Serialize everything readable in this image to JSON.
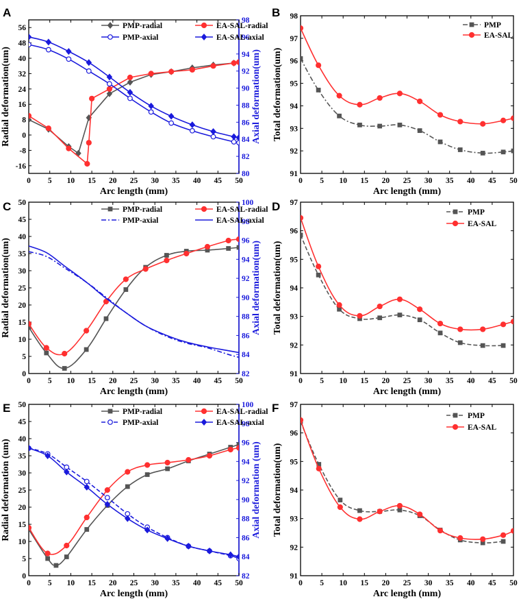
{
  "colors": {
    "pmp": "#555555",
    "ea_sal": "#ff3030",
    "axial_axis": "#1a1adc",
    "axis": "#000000"
  },
  "chart_data": [
    {
      "panel": "A",
      "type": "line",
      "xlabel": "Arc length (mm)",
      "ylabel": "Radial deformation(um)",
      "y2label": "Axial deformation(um)",
      "xlim": [
        0,
        50
      ],
      "ylim": [
        -20,
        60
      ],
      "y2lim": [
        80,
        98
      ],
      "xticks": [
        0,
        5,
        10,
        15,
        20,
        25,
        30,
        35,
        40,
        45,
        50
      ],
      "yticks": [
        -16,
        -8,
        0,
        8,
        16,
        24,
        32,
        40,
        48,
        56
      ],
      "y2ticks": [
        80,
        82,
        84,
        86,
        88,
        90,
        92,
        94,
        96,
        98
      ],
      "legend_position": "top-center",
      "series": [
        {
          "name": "PMP-radial",
          "axis": "left",
          "color": "#555555",
          "marker": "diamond",
          "dash": "solid",
          "x": [
            0,
            4.7,
            9.5,
            11.8,
            14.3,
            19.2,
            24.1,
            29.1,
            33.9,
            38.9,
            43.9,
            48.8,
            50
          ],
          "y": [
            8,
            3,
            -6,
            -9.5,
            9,
            21.5,
            27.5,
            31.5,
            33,
            35,
            36.5,
            37.5,
            37.8
          ]
        },
        {
          "name": "EA-SAL-radial",
          "axis": "left",
          "color": "#ff3030",
          "marker": "circle",
          "dash": "solid",
          "x": [
            0,
            4.7,
            9.5,
            13.9,
            14.3,
            15,
            19.2,
            24.1,
            29.1,
            33.9,
            38.9,
            43.9,
            48.8,
            50
          ],
          "y": [
            10,
            3.5,
            -7,
            -15,
            -4,
            19,
            24,
            30,
            32,
            33,
            34,
            36,
            37.5,
            38
          ]
        },
        {
          "name": "PMP-axial",
          "axis": "right",
          "color": "#1a1adc",
          "marker": "open-circle",
          "dash": "solid",
          "x": [
            0,
            4.7,
            9.5,
            14.3,
            19.2,
            24.1,
            29.1,
            33.9,
            38.9,
            43.9,
            48.8,
            50
          ],
          "y": [
            95.1,
            94.5,
            93.4,
            92.0,
            90.5,
            88.8,
            87.2,
            85.9,
            85.0,
            84.3,
            83.7,
            83.6
          ]
        },
        {
          "name": "EA-SAL-axial",
          "axis": "right",
          "color": "#1a1adc",
          "marker": "filled-diamond",
          "dash": "solid",
          "x": [
            0,
            4.7,
            9.5,
            14.3,
            19.2,
            24.1,
            29.1,
            33.9,
            38.9,
            43.9,
            48.8,
            50
          ],
          "y": [
            96.0,
            95.4,
            94.3,
            93.0,
            91.3,
            89.5,
            87.9,
            86.7,
            85.7,
            84.9,
            84.3,
            84.2
          ]
        }
      ]
    },
    {
      "panel": "B",
      "type": "line",
      "xlabel": "Arc length (mm)",
      "ylabel": "Total deformation(um)",
      "xlim": [
        0,
        50
      ],
      "ylim": [
        91,
        98
      ],
      "xticks": [
        0,
        5,
        10,
        15,
        20,
        25,
        30,
        35,
        40,
        45,
        50
      ],
      "yticks": [
        91,
        92,
        93,
        94,
        95,
        96,
        97,
        98
      ],
      "legend_position": "top-right",
      "series": [
        {
          "name": "PMP",
          "color": "#555555",
          "marker": "square",
          "dash": "dashdot",
          "x": [
            0,
            4.2,
            9.1,
            13.9,
            18.6,
            23.3,
            28,
            32.8,
            37.5,
            42.8,
            47.6,
            50
          ],
          "y": [
            96.1,
            94.7,
            93.55,
            93.15,
            93.1,
            93.15,
            92.9,
            92.4,
            92.05,
            91.9,
            91.95,
            92.0
          ]
        },
        {
          "name": "EA-SAL",
          "color": "#ff3030",
          "marker": "circle",
          "dash": "solid",
          "x": [
            0,
            4.2,
            9.1,
            13.9,
            18.6,
            23.3,
            28,
            32.8,
            37.5,
            42.8,
            47.6,
            50
          ],
          "y": [
            97.45,
            95.8,
            94.45,
            94.05,
            94.35,
            94.55,
            94.2,
            93.6,
            93.3,
            93.2,
            93.35,
            93.45
          ]
        }
      ]
    },
    {
      "panel": "C",
      "type": "line",
      "xlabel": "Arc length (mm)",
      "ylabel": "Radial deformation(um)",
      "y2label": "Axial deformation(um)",
      "xlim": [
        0,
        50
      ],
      "ylim": [
        0,
        50
      ],
      "y2lim": [
        82,
        100
      ],
      "xticks": [
        0,
        5,
        10,
        15,
        20,
        25,
        30,
        35,
        40,
        45,
        50
      ],
      "yticks": [
        0,
        5,
        10,
        15,
        20,
        25,
        30,
        35,
        40,
        45,
        50
      ],
      "y2ticks": [
        82,
        84,
        86,
        88,
        90,
        92,
        94,
        96,
        98,
        100
      ],
      "legend_position": "top-center",
      "series": [
        {
          "name": "PMP-radial",
          "axis": "left",
          "color": "#555555",
          "marker": "square",
          "dash": "solid",
          "x": [
            0,
            4.2,
            8.5,
            13.7,
            18.4,
            23.1,
            27.8,
            32.8,
            37.5,
            42.5,
            47.5,
            50
          ],
          "y": [
            13.5,
            6,
            1.5,
            7,
            16,
            24.5,
            31,
            34.5,
            35.7,
            36,
            36.5,
            36.8
          ]
        },
        {
          "name": "EA-SAL-radial",
          "axis": "left",
          "color": "#ff3030",
          "marker": "circle",
          "dash": "solid",
          "x": [
            0,
            4.2,
            8.5,
            13.7,
            18.4,
            23.1,
            27.8,
            32.8,
            37.5,
            42.5,
            47.5,
            50
          ],
          "y": [
            14.5,
            7.5,
            5.8,
            12.5,
            21,
            27.5,
            30.5,
            33,
            35,
            37,
            38.8,
            39.2
          ]
        },
        {
          "name": "PMP-axial",
          "axis": "right",
          "color": "#1a1adc",
          "marker": "none",
          "dash": "dashdot",
          "x": [
            0,
            4.2,
            8.5,
            13.7,
            18.4,
            23.1,
            27.8,
            32.8,
            37.5,
            42.5,
            47.5,
            50
          ],
          "y": [
            94.8,
            94.3,
            93.1,
            91.6,
            90.0,
            88.4,
            87.0,
            85.9,
            85.2,
            84.7,
            84.0,
            83.7
          ]
        },
        {
          "name": "EA-SAL-axial",
          "axis": "right",
          "color": "#1a1adc",
          "marker": "none",
          "dash": "solid",
          "x": [
            0,
            4.2,
            8.5,
            13.7,
            18.4,
            23.1,
            27.8,
            32.8,
            37.5,
            42.5,
            47.5,
            50
          ],
          "y": [
            95.4,
            94.7,
            93.3,
            91.6,
            89.9,
            88.4,
            87.0,
            86.0,
            85.3,
            84.8,
            84.4,
            84.2
          ]
        }
      ]
    },
    {
      "panel": "D",
      "type": "line",
      "xlabel": "Arc length (mm)",
      "ylabel": "Total deformation(um)",
      "xlim": [
        0,
        50
      ],
      "ylim": [
        91,
        97
      ],
      "xticks": [
        0,
        5,
        10,
        15,
        20,
        25,
        30,
        35,
        40,
        45,
        50
      ],
      "yticks": [
        91,
        92,
        93,
        94,
        95,
        96,
        97
      ],
      "legend_position": "top-right",
      "series": [
        {
          "name": "PMP",
          "color": "#555555",
          "marker": "square",
          "dash": "dashed",
          "x": [
            0,
            4.2,
            9.1,
            13.9,
            18.6,
            23.3,
            28,
            32.8,
            37.5,
            42.8,
            47.6
          ],
          "y": [
            95.85,
            94.45,
            93.25,
            92.92,
            92.95,
            93.05,
            92.88,
            92.42,
            92.08,
            91.98,
            91.98
          ]
        },
        {
          "name": "EA-SAL",
          "color": "#ff3030",
          "marker": "circle",
          "dash": "solid",
          "x": [
            0,
            4.2,
            9.1,
            13.9,
            18.6,
            23.3,
            28,
            32.8,
            37.5,
            42.8,
            47.6,
            50
          ],
          "y": [
            96.45,
            94.75,
            93.4,
            93.02,
            93.35,
            93.6,
            93.25,
            92.75,
            92.55,
            92.55,
            92.72,
            92.82
          ]
        }
      ]
    },
    {
      "panel": "E",
      "type": "line",
      "xlabel": "Arc length (mm)",
      "ylabel": "Radial deformation (um)",
      "y2label": "Axial deformation (um)",
      "xlim": [
        0,
        50
      ],
      "ylim": [
        0,
        50
      ],
      "y2lim": [
        82,
        100
      ],
      "xticks": [
        0,
        5,
        10,
        15,
        20,
        25,
        30,
        35,
        40,
        45,
        50
      ],
      "yticks": [
        0,
        5,
        10,
        15,
        20,
        25,
        30,
        35,
        40,
        45,
        50
      ],
      "y2ticks": [
        82,
        84,
        86,
        88,
        90,
        92,
        94,
        96,
        98,
        100
      ],
      "legend_position": "top-center",
      "series": [
        {
          "name": "PMP-radial",
          "axis": "left",
          "color": "#555555",
          "marker": "square",
          "dash": "solid",
          "x": [
            0,
            4.5,
            6.5,
            9,
            13.8,
            18.7,
            23.5,
            28.2,
            33,
            38,
            43,
            48,
            50
          ],
          "y": [
            13.5,
            5,
            3,
            5.5,
            13.5,
            20.5,
            26,
            29.5,
            31.2,
            33.5,
            35.5,
            37.5,
            38.3
          ]
        },
        {
          "name": "EA-SAL-radial",
          "axis": "left",
          "color": "#ff3030",
          "marker": "circle",
          "dash": "solid",
          "x": [
            0,
            4.5,
            9,
            13.8,
            18.7,
            23.5,
            28.2,
            33,
            38,
            43,
            48,
            50
          ],
          "y": [
            14,
            6.5,
            8.8,
            17,
            25,
            30.3,
            32.3,
            33,
            33.8,
            35,
            36.8,
            37.3
          ]
        },
        {
          "name": "PMP-axial",
          "axis": "right",
          "color": "#1a1adc",
          "marker": "open-circle",
          "dash": "dashed",
          "x": [
            0,
            4.5,
            9,
            13.8,
            18.7,
            23.5,
            28.2,
            33,
            38,
            43,
            48,
            50
          ],
          "y": [
            95.4,
            94.8,
            93.4,
            91.9,
            90.2,
            88.5,
            87.1,
            86.0,
            85.1,
            84.6,
            84.1,
            83.8
          ]
        },
        {
          "name": "EA-SAL-axial",
          "axis": "right",
          "color": "#1a1adc",
          "marker": "filled-diamond",
          "dash": "solid",
          "x": [
            0,
            4.5,
            9,
            13.8,
            18.7,
            23.5,
            28.2,
            33,
            38,
            43,
            48,
            50
          ],
          "y": [
            95.4,
            94.6,
            92.9,
            91.3,
            89.5,
            88.0,
            86.8,
            85.9,
            85.1,
            84.6,
            84.2,
            84.0
          ]
        }
      ]
    },
    {
      "panel": "F",
      "type": "line",
      "xlabel": "Arc length (mm)",
      "ylabel": "Total deformation(um)",
      "xlim": [
        0,
        50
      ],
      "ylim": [
        91,
        97
      ],
      "xticks": [
        0,
        5,
        10,
        15,
        20,
        25,
        30,
        35,
        40,
        45,
        50
      ],
      "yticks": [
        91,
        92,
        93,
        94,
        95,
        96,
        97
      ],
      "legend_position": "top-right",
      "series": [
        {
          "name": "PMP",
          "color": "#555555",
          "marker": "square",
          "dash": "dashed",
          "x": [
            0,
            4.3,
            9.3,
            13.9,
            18.6,
            23.3,
            28,
            32.8,
            37.5,
            42.8,
            47.6
          ],
          "y": [
            96.4,
            94.9,
            93.65,
            93.28,
            93.25,
            93.3,
            93.1,
            92.6,
            92.25,
            92.15,
            92.2
          ]
        },
        {
          "name": "EA-SAL",
          "color": "#ff3030",
          "marker": "circle",
          "dash": "solid",
          "x": [
            0,
            4.3,
            9.3,
            13.9,
            18.6,
            23.3,
            28,
            32.8,
            37.5,
            42.8,
            47.6,
            50
          ],
          "y": [
            96.45,
            94.75,
            93.4,
            92.98,
            93.25,
            93.45,
            93.15,
            92.58,
            92.32,
            92.28,
            92.42,
            92.57
          ]
        }
      ]
    }
  ]
}
